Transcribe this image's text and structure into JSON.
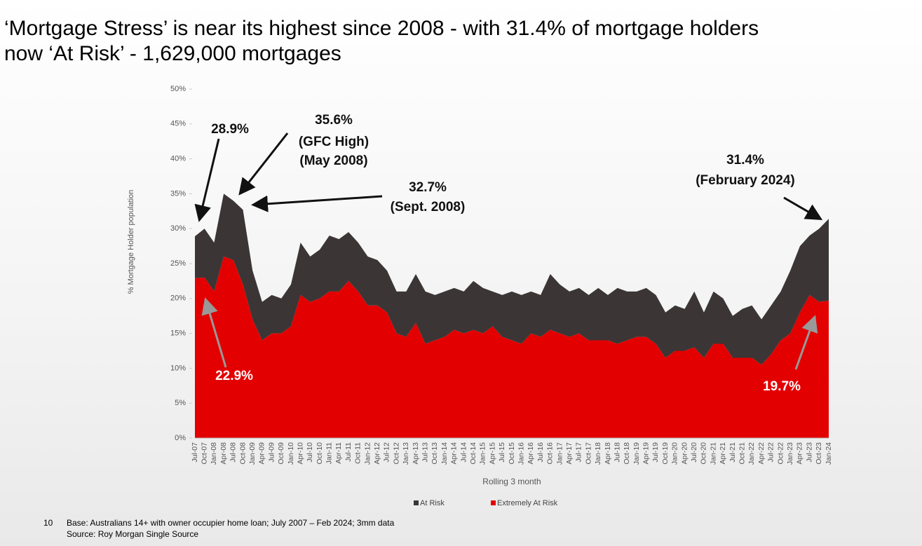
{
  "chart_data": {
    "type": "stacked_area",
    "title": [
      "‘Mortgage Stress’ is near its highest since 2008 - with 31.4% of mortgage holders",
      "now ‘At Risk’ - 1,629,000 mortgages"
    ],
    "y_label": "% Mortgage Holder population",
    "x_label": "Rolling 3 month",
    "categories": [
      "Jul-07",
      "Oct-07",
      "Jan-08",
      "Apr-08",
      "Jul-08",
      "Oct-08",
      "Jan-09",
      "Apr-09",
      "Jul-09",
      "Oct-09",
      "Jan-10",
      "Apr-10",
      "Jul-10",
      "Oct-10",
      "Jan-11",
      "Apr-11",
      "Jul-11",
      "Oct-11",
      "Jan-12",
      "Apr-12",
      "Jul-12",
      "Oct-12",
      "Jan-13",
      "Apr-13",
      "Jul-13",
      "Oct-13",
      "Jan-14",
      "Apr-14",
      "Jul-14",
      "Oct-14",
      "Jan-15",
      "Apr-15",
      "Jul-15",
      "Oct-15",
      "Jan-16",
      "Apr-16",
      "Jul-16",
      "Oct-16",
      "Jan-17",
      "Apr-17",
      "Jul-17",
      "Oct-17",
      "Jan-18",
      "Apr-18",
      "Jul-18",
      "Oct-18",
      "Jan-19",
      "Apr-19",
      "Jul-19",
      "Oct-19",
      "Jan-20",
      "Apr-20",
      "Jul-20",
      "Oct-20",
      "Jan-21",
      "Apr-21",
      "Jul-21",
      "Oct-21",
      "Jan-22",
      "Apr-22",
      "Jul-22",
      "Oct-22",
      "Jan-23",
      "Apr-23",
      "Jul-23",
      "Oct-23",
      "Jan-24"
    ],
    "series": [
      {
        "name": "Extremely At Risk",
        "color": "#e30000",
        "values": [
          22.9,
          23,
          21,
          26,
          25.5,
          22,
          17,
          14,
          15,
          15,
          16,
          20.5,
          19.5,
          20,
          21,
          21,
          22.5,
          21,
          19,
          19,
          18,
          15,
          14.5,
          16.5,
          13.5,
          14,
          14.5,
          15.5,
          15,
          15.5,
          15,
          16,
          14.5,
          14,
          13.5,
          15,
          14.5,
          15.5,
          15,
          14.5,
          15,
          14,
          14,
          14,
          13.5,
          14,
          14.5,
          14.5,
          13.5,
          11.5,
          12.5,
          12.5,
          13,
          11.5,
          13.5,
          13.5,
          11.5,
          11.5,
          11.5,
          10.5,
          12,
          14,
          15,
          18,
          20.5,
          19.5,
          19.7
        ]
      },
      {
        "name": "At Risk",
        "color": "#3b3535",
        "values": [
          6,
          7,
          7,
          9,
          8.5,
          10.7,
          7,
          5.5,
          5.5,
          5,
          6,
          7.5,
          6.5,
          7,
          8,
          7.5,
          7,
          7,
          7,
          6.5,
          6,
          6,
          6.5,
          7,
          7.5,
          6.5,
          6.5,
          6,
          6,
          7,
          6.5,
          5,
          6,
          7,
          7,
          6,
          6,
          8,
          7,
          6.5,
          6.5,
          6.5,
          7.5,
          6.5,
          8,
          7,
          6.5,
          7,
          7,
          6.5,
          6.5,
          6,
          8,
          6.5,
          7.5,
          6.5,
          6,
          7,
          7.5,
          6.5,
          7,
          7,
          9,
          9.5,
          8.5,
          10.5,
          11.7
        ]
      }
    ],
    "ylim": [
      0,
      50
    ],
    "yticks": [
      {
        "value": 0,
        "label": "0%"
      },
      {
        "value": 5,
        "label": "5%"
      },
      {
        "value": 10,
        "label": "10%"
      },
      {
        "value": 15,
        "label": "15%"
      },
      {
        "value": 20,
        "label": "20%"
      },
      {
        "value": 25,
        "label": "25%"
      },
      {
        "value": 30,
        "label": "30%"
      },
      {
        "value": 35,
        "label": "35%"
      },
      {
        "value": 40,
        "label": "40%"
      },
      {
        "value": 45,
        "label": "45%"
      },
      {
        "value": 50,
        "label": "50%"
      }
    ],
    "annotations": [
      "28.9%",
      "35.6%",
      "(GFC High)",
      "(May 2008)",
      "32.7%",
      "(Sept. 2008)",
      "31.4%",
      "(February 2024)",
      "22.9%",
      "19.7%"
    ],
    "footnote": {
      "page": "10",
      "base": "Base: Australians 14+ with owner occupier home loan; July 2007 – Feb 2024; 3mm data",
      "source": "Source: Roy Morgan Single Source"
    }
  }
}
